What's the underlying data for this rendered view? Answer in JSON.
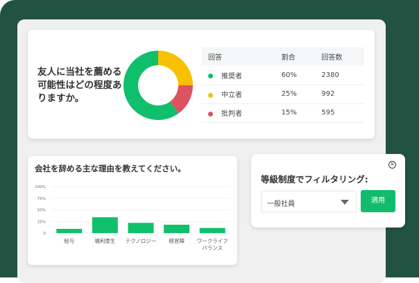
{
  "nps": {
    "question": "友人に当社を薦める可能性はどの程度ありますか。",
    "headers": [
      "回答",
      "割合",
      "回答数"
    ],
    "rows": [
      {
        "label": "推奨者",
        "pct": "60%",
        "count": "2380",
        "value": 60,
        "color": "#10bf6c"
      },
      {
        "label": "中立者",
        "pct": "25%",
        "count": "992",
        "value": 25,
        "color": "#f7c100"
      },
      {
        "label": "批判者",
        "pct": "15%",
        "count": "595",
        "value": 15,
        "color": "#dd5260"
      }
    ]
  },
  "chart_data": {
    "type": "bar",
    "title": "会社を辞める主な理由を教えてください。",
    "categories": [
      "給与",
      "福利厚生",
      "テクノロジー",
      "経営陣",
      "ワークライフバランス"
    ],
    "category_lines": [
      [
        "給与"
      ],
      [
        "福利厚生"
      ],
      [
        "テクノロジー"
      ],
      [
        "経営陣"
      ],
      [
        "ワークライフ",
        "バランス"
      ]
    ],
    "values": [
      9,
      34,
      22,
      18,
      11
    ],
    "ylim": [
      0,
      100
    ],
    "yticks": [
      "0",
      "25%",
      "50%",
      "75%",
      "100%"
    ],
    "grid": true,
    "color": "#10bf6c"
  },
  "filter": {
    "title": "等級制度でフィルタリング:",
    "selected": "一般社員",
    "apply_label": "適用",
    "close_icon": "close-circle-icon"
  }
}
